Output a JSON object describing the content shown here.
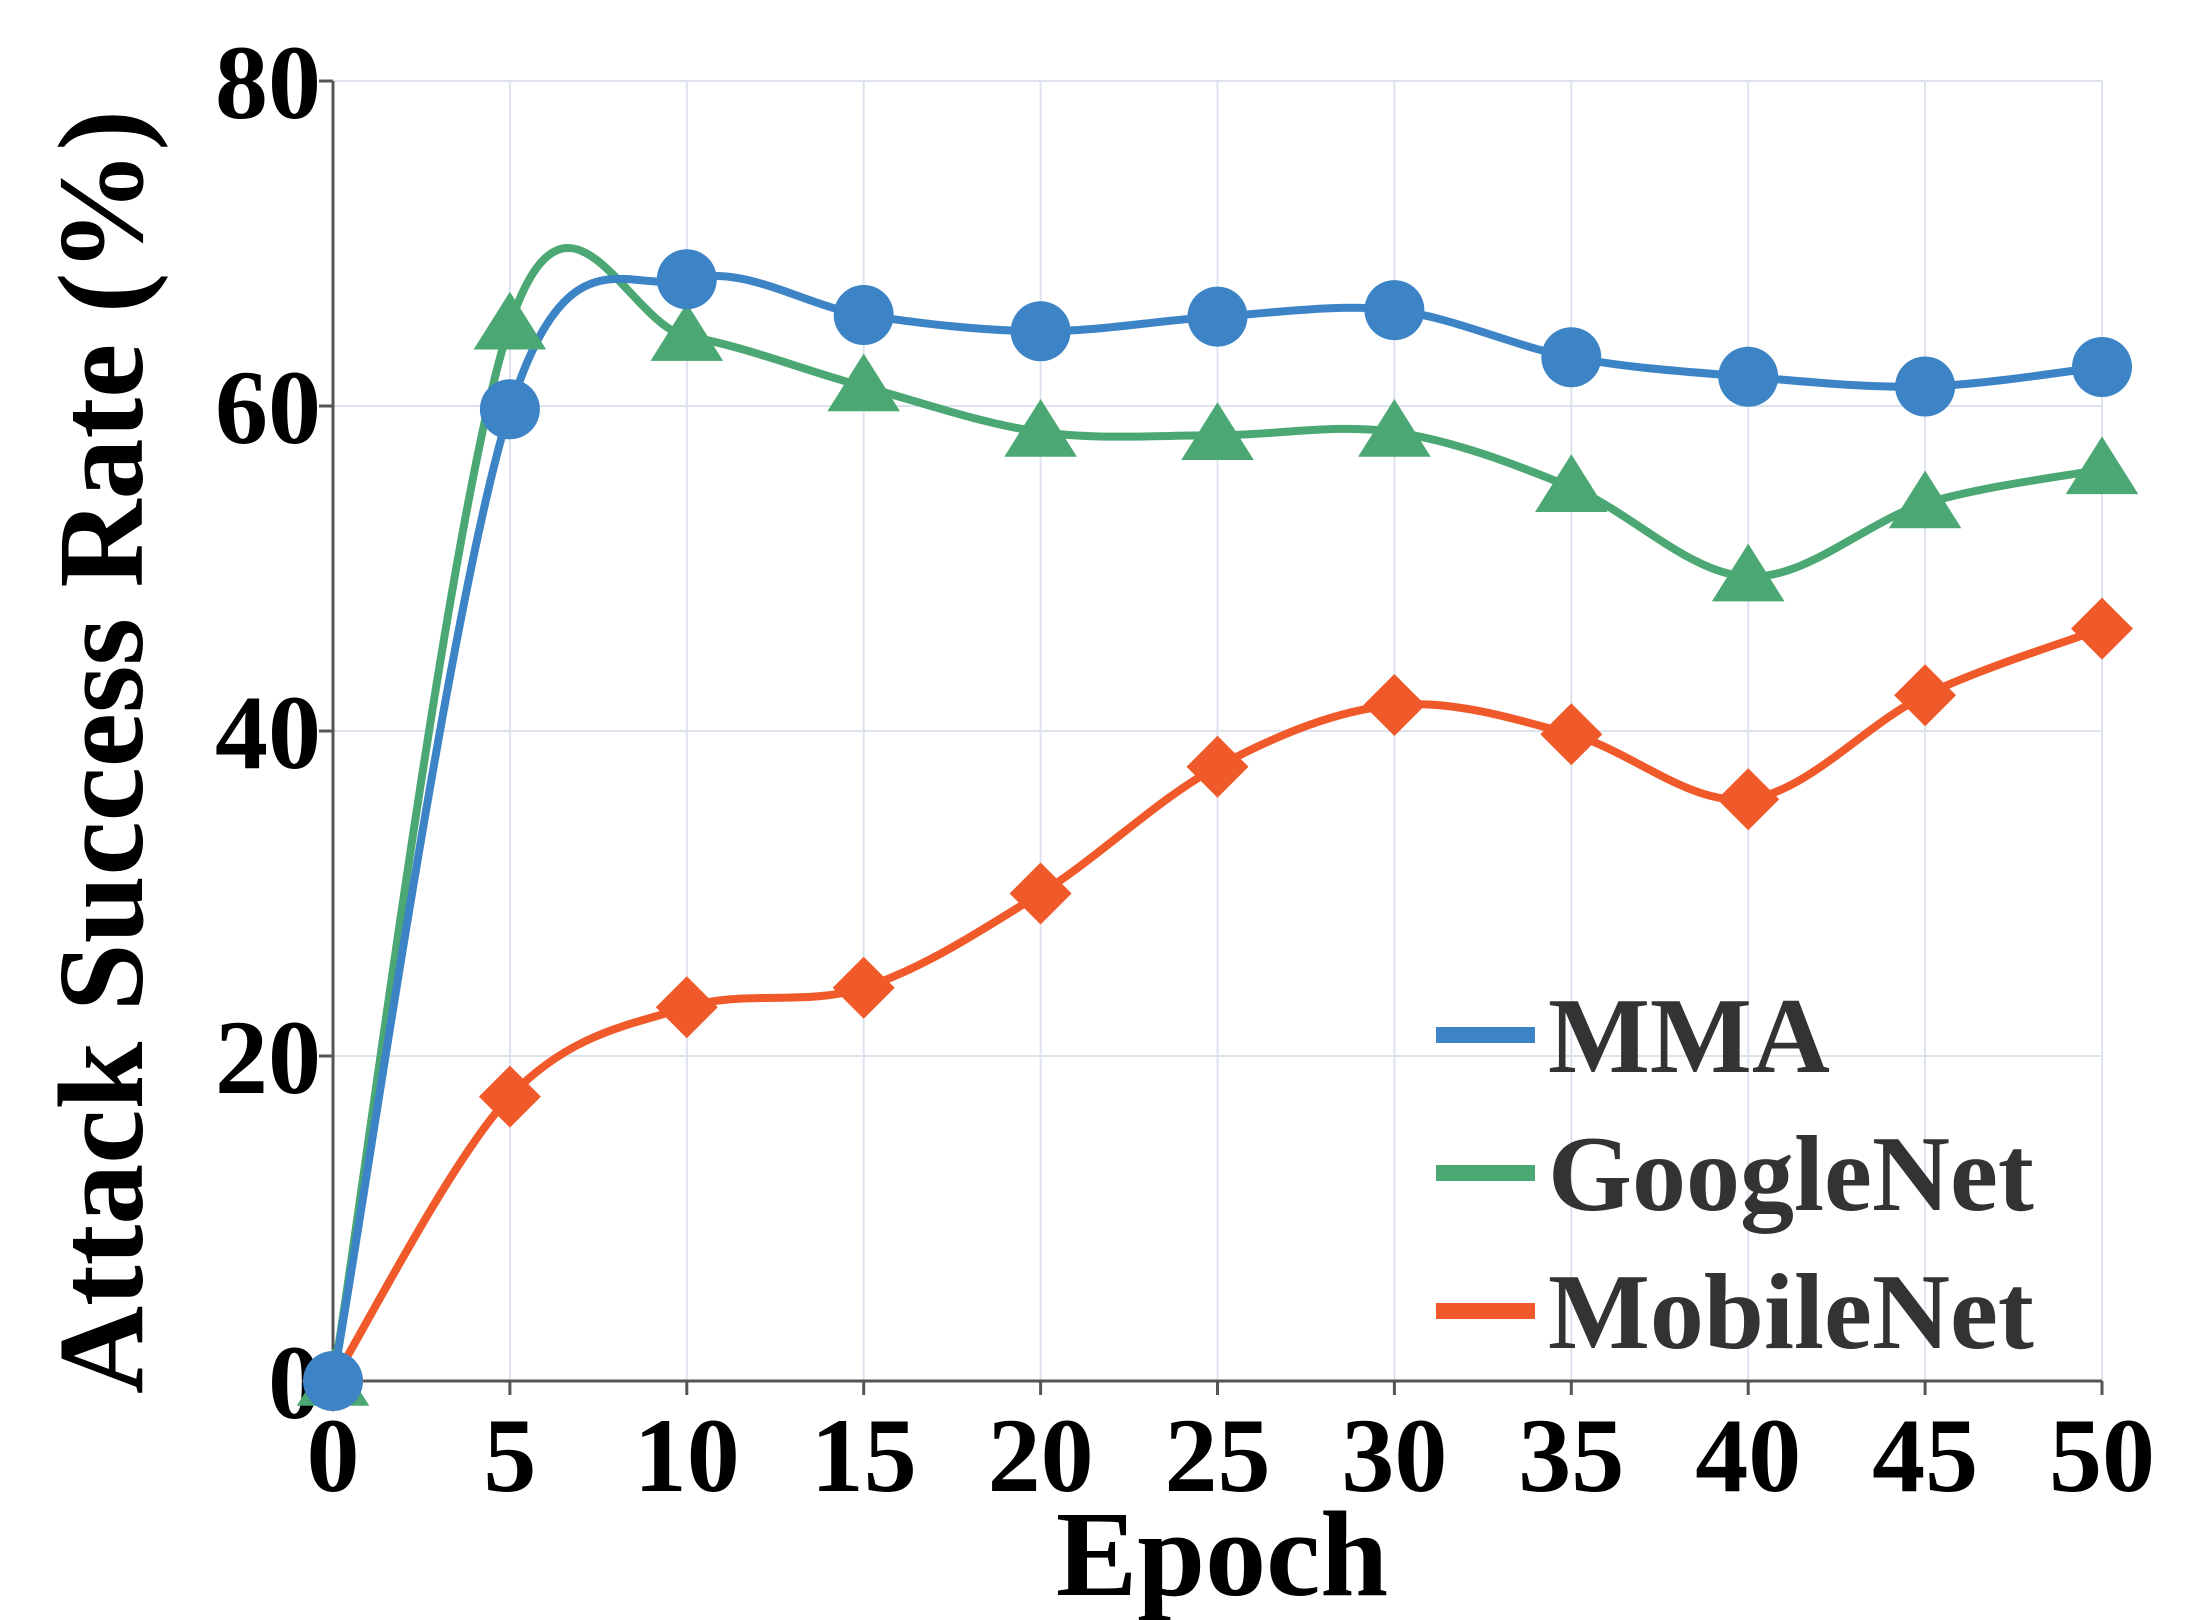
{
  "chart_data": {
    "type": "line",
    "title": "",
    "xlabel": "Epoch",
    "ylabel": "Attack Success Rate (%)",
    "x": [
      0,
      5,
      10,
      15,
      20,
      25,
      30,
      35,
      40,
      45,
      50
    ],
    "xlim": [
      0,
      50
    ],
    "ylim": [
      0,
      80
    ],
    "xticks": [
      0,
      5,
      10,
      15,
      20,
      25,
      30,
      35,
      40,
      45,
      50
    ],
    "yticks": [
      0,
      20,
      40,
      60,
      80
    ],
    "grid": true,
    "legend_position": "bottom-right",
    "series": [
      {
        "name": "MMA",
        "color": "#3d84c6",
        "marker": "circle",
        "values": [
          0,
          59.8,
          67.8,
          65.6,
          64.6,
          65.5,
          65.9,
          63.0,
          61.8,
          61.2,
          62.4
        ]
      },
      {
        "name": "GoogleNet",
        "color": "#4ba773",
        "marker": "triangle",
        "values": [
          0,
          65.0,
          64.3,
          61.2,
          58.4,
          58.2,
          58.4,
          55.0,
          49.5,
          54.0,
          56.1
        ]
      },
      {
        "name": "MobileNet",
        "color": "#f0592a",
        "marker": "diamond",
        "values": [
          0,
          17.5,
          23.0,
          24.2,
          30.0,
          37.8,
          41.6,
          39.8,
          35.8,
          42.2,
          46.3
        ]
      }
    ]
  }
}
